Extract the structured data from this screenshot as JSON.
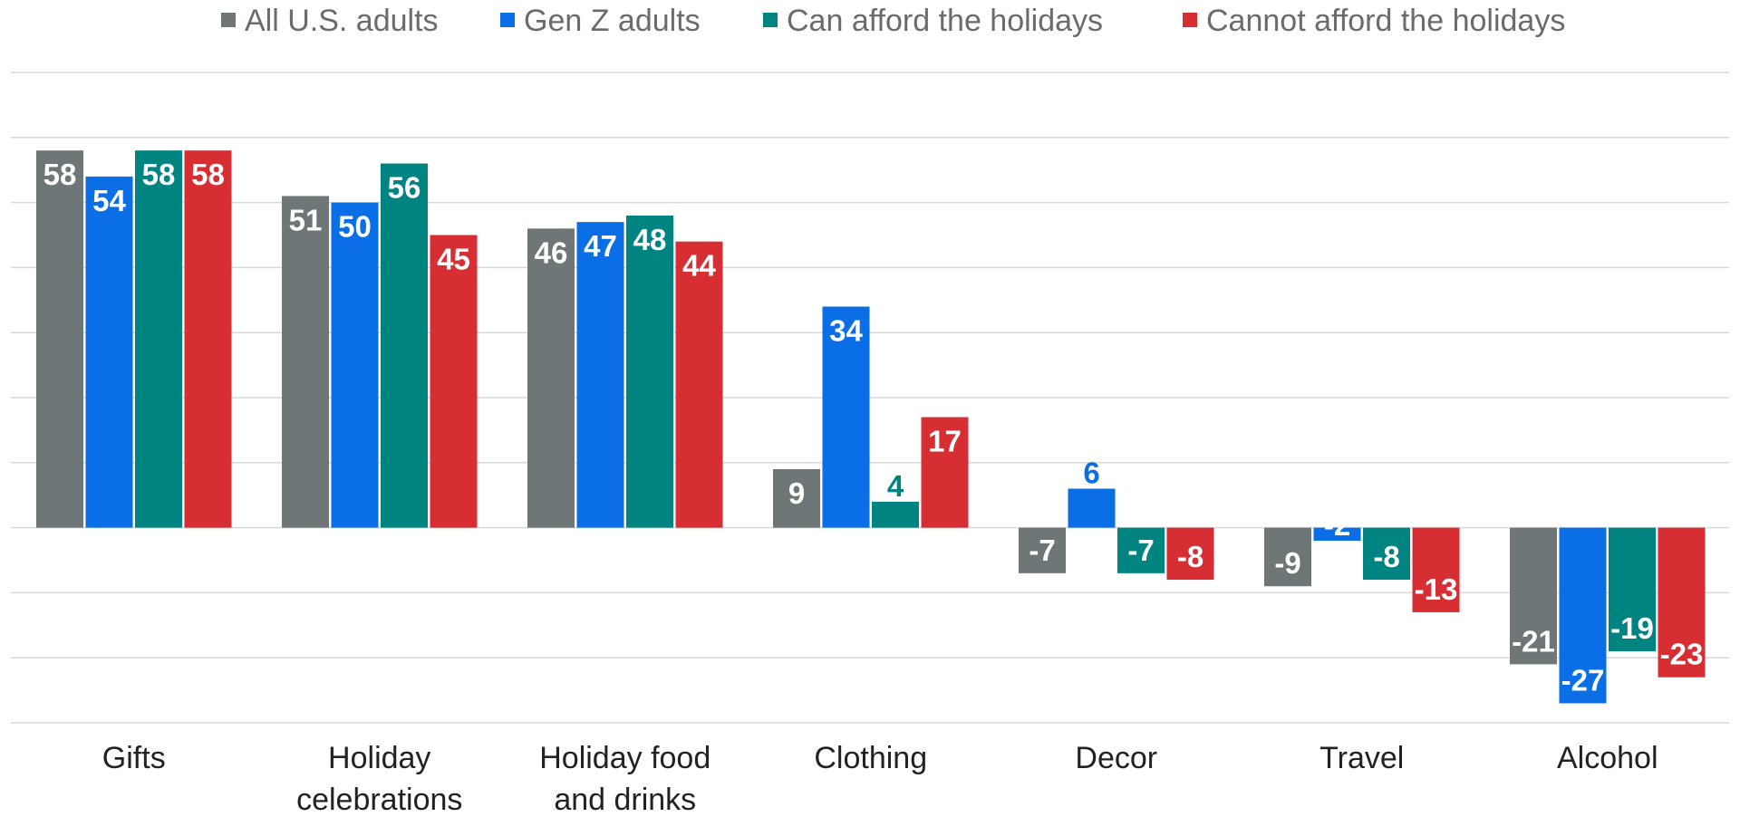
{
  "chart_data": {
    "type": "bar",
    "categories": [
      [
        "Gifts"
      ],
      [
        "Holiday",
        "celebrations"
      ],
      [
        "Holiday food",
        "and drinks"
      ],
      [
        "Clothing"
      ],
      [
        "Decor"
      ],
      [
        "Travel"
      ],
      [
        "Alcohol"
      ]
    ],
    "series": [
      {
        "name": "All U.S. adults",
        "color": "#6e7677",
        "values": [
          58,
          51,
          46,
          9,
          -7,
          -9,
          -21
        ]
      },
      {
        "name": "Gen Z adults",
        "color": "#0a6fe6",
        "values": [
          54,
          50,
          47,
          34,
          6,
          -2,
          -27
        ]
      },
      {
        "name": "Can afford the holidays",
        "color": "#008482",
        "values": [
          58,
          56,
          48,
          4,
          -7,
          -8,
          -19
        ]
      },
      {
        "name": "Cannot afford the holidays",
        "color": "#d72e34",
        "values": [
          58,
          45,
          44,
          17,
          -8,
          -13,
          -23
        ]
      }
    ],
    "ylim": [
      -30,
      70
    ],
    "grid": true,
    "legend": "top",
    "title": "",
    "xlabel": "",
    "ylabel": ""
  }
}
